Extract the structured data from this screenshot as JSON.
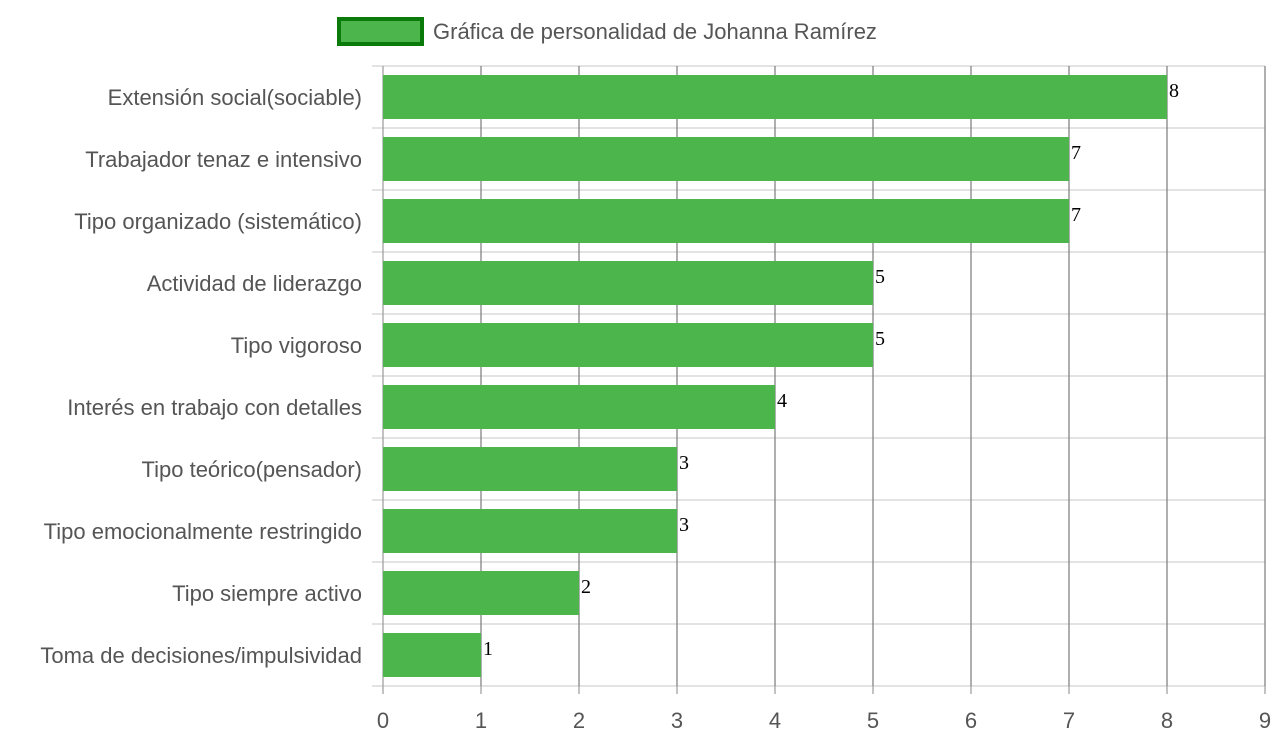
{
  "chart_data": {
    "type": "bar",
    "orientation": "horizontal",
    "categories": [
      "Extensión social(sociable)",
      "Trabajador tenaz e intensivo",
      "Tipo organizado (sistemático)",
      "Actividad de liderazgo",
      "Tipo vigoroso",
      "Interés en trabajo con detalles",
      "Tipo teórico(pensador)",
      "Tipo emocionalmente restringido",
      "Tipo siempre activo",
      "Toma de decisiones/impulsividad"
    ],
    "series": [
      {
        "name": "Gráfica de personalidad de Johanna Ramírez",
        "values": [
          8,
          7,
          7,
          5,
          5,
          4,
          3,
          3,
          2,
          1
        ]
      }
    ],
    "xlim": [
      0,
      9
    ],
    "x_ticks": [
      "0",
      "1",
      "2",
      "3",
      "4",
      "5",
      "6",
      "7",
      "8",
      "9"
    ],
    "grid": true,
    "legend_position": "top",
    "data_labels": true,
    "colors": {
      "bar_fill": "#4CB64C",
      "legend_border": "#0A7A0A",
      "grid": "#7a7a7a",
      "row_divider": "#e3e3e3",
      "text": "#555555"
    }
  }
}
